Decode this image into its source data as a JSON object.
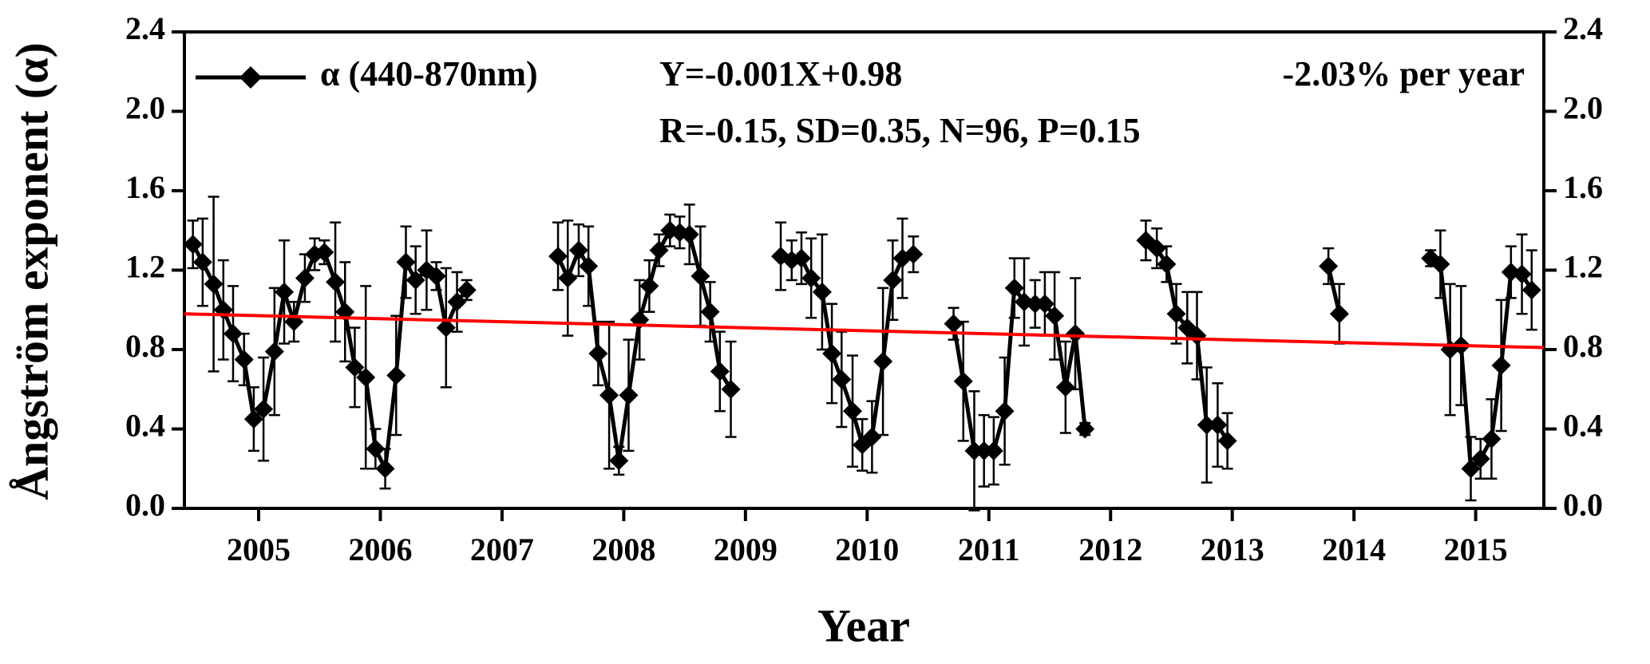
{
  "chart_data": {
    "type": "line",
    "x_label": "Year",
    "y_label": "Ångström exponent (α)",
    "annotations": [
      "Y=-0.001X+0.98",
      "-2.03% per year",
      "R=-0.15, SD=0.35, N=96, P=0.15"
    ],
    "xlim": [
      2004.39,
      2015.56
    ],
    "xticks": [
      2005,
      2006,
      2007,
      2008,
      2009,
      2010,
      2011,
      2012,
      2013,
      2014,
      2015
    ],
    "ylim": [
      0,
      2.4
    ],
    "yticks": [
      {
        "value": 0,
        "label": "0.0"
      },
      {
        "value": 0.4,
        "label": "0.4"
      },
      {
        "value": 0.8,
        "label": "0.8"
      },
      {
        "value": 1.2,
        "label": "1.2"
      },
      {
        "value": 1.6,
        "label": "1.6"
      },
      {
        "value": 2,
        "label": "2.0"
      },
      {
        "value": 2.4,
        "label": "2.4"
      }
    ],
    "legend": "top-left",
    "series": [
      {
        "name": "α (440-870nm)",
        "color": "#000000",
        "x": [
          2004.46,
          2004.54,
          2004.63,
          2004.71,
          2004.79,
          2004.88,
          2004.96,
          2005.04,
          2005.13,
          2005.21,
          2005.29,
          2005.38,
          2005.46,
          2005.54,
          2005.63,
          2005.71,
          2005.79,
          2005.88,
          2005.96,
          2006.04,
          2006.13,
          2006.21,
          2006.29,
          2006.38,
          2006.46,
          2006.54,
          2006.63,
          2006.71,
          2007.0,
          2007.46,
          2007.54,
          2007.63,
          2007.71,
          2007.79,
          2007.88,
          2007.96,
          2008.04,
          2008.13,
          2008.21,
          2008.29,
          2008.38,
          2008.46,
          2008.54,
          2008.63,
          2008.71,
          2008.79,
          2008.88,
          2009.0,
          2009.29,
          2009.38,
          2009.46,
          2009.54,
          2009.63,
          2009.71,
          2009.79,
          2009.88,
          2009.96,
          2010.04,
          2010.13,
          2010.21,
          2010.29,
          2010.38,
          2010.5,
          2010.71,
          2010.79,
          2010.88,
          2010.96,
          2011.04,
          2011.13,
          2011.21,
          2011.29,
          2011.38,
          2011.46,
          2011.54,
          2011.63,
          2011.71,
          2011.79,
          2012.0,
          2012.29,
          2012.38,
          2012.46,
          2012.54,
          2012.63,
          2012.71,
          2012.79,
          2012.88,
          2012.96,
          2013.5,
          2013.79,
          2013.88,
          2014.2,
          2014.63,
          2014.71,
          2014.79,
          2014.88,
          2014.96,
          2015.04,
          2015.13,
          2015.21,
          2015.29,
          2015.38,
          2015.46
        ],
        "values": [
          1.33,
          1.24,
          1.13,
          1.0,
          0.88,
          0.75,
          0.45,
          0.5,
          0.79,
          1.09,
          0.94,
          1.16,
          1.28,
          1.29,
          1.14,
          0.99,
          0.71,
          0.66,
          0.3,
          0.2,
          0.67,
          1.24,
          1.15,
          1.2,
          1.17,
          0.91,
          1.04,
          1.1,
          null,
          1.27,
          1.16,
          1.3,
          1.22,
          0.78,
          0.57,
          0.24,
          0.57,
          0.95,
          1.12,
          1.3,
          1.4,
          1.39,
          1.38,
          1.17,
          0.99,
          0.69,
          0.6,
          null,
          1.27,
          1.25,
          1.26,
          1.16,
          1.09,
          0.78,
          0.65,
          0.49,
          0.32,
          0.36,
          0.74,
          1.15,
          1.26,
          1.28,
          null,
          0.93,
          0.64,
          0.29,
          0.29,
          0.29,
          0.49,
          1.11,
          1.04,
          1.03,
          1.03,
          0.97,
          0.61,
          0.88,
          0.4,
          null,
          1.35,
          1.31,
          1.23,
          0.98,
          0.91,
          0.87,
          0.42,
          0.42,
          0.34,
          null,
          1.22,
          0.98,
          null,
          1.26,
          1.23,
          0.8,
          0.82,
          0.2,
          0.25,
          0.35,
          0.72,
          1.19,
          1.18,
          1.1
        ],
        "errors": [
          0.12,
          0.22,
          0.44,
          0.25,
          0.24,
          0.13,
          0.16,
          0.26,
          0.32,
          0.26,
          0.1,
          0.12,
          0.08,
          0.06,
          0.3,
          0.25,
          0.2,
          0.46,
          0.1,
          0.1,
          0.3,
          0.18,
          0.17,
          0.2,
          0.07,
          0.3,
          0.15,
          0.05,
          null,
          0.17,
          0.29,
          0.13,
          0.2,
          0.16,
          0.37,
          0.07,
          0.28,
          0.2,
          0.13,
          0.08,
          0.08,
          0.08,
          0.15,
          0.25,
          0.15,
          0.2,
          0.24,
          null,
          0.17,
          0.1,
          0.13,
          0.2,
          0.29,
          0.25,
          0.24,
          0.28,
          0.13,
          0.18,
          0.37,
          0.2,
          0.2,
          0.09,
          null,
          0.08,
          0.3,
          0.3,
          0.18,
          0.17,
          0.27,
          0.15,
          0.22,
          0.12,
          0.16,
          0.22,
          0.23,
          0.28,
          0.03,
          null,
          0.1,
          0.1,
          0.09,
          0.15,
          0.18,
          0.22,
          0.29,
          0.21,
          0.14,
          null,
          0.09,
          0.15,
          null,
          0.04,
          0.17,
          0.33,
          0.3,
          0.16,
          0.1,
          0.2,
          0.33,
          0.13,
          0.2,
          0.2
        ]
      }
    ],
    "trend_line": {
      "color": "#ff0000",
      "x": [
        2004.39,
        2015.56
      ],
      "values": [
        0.98,
        0.81
      ]
    }
  }
}
